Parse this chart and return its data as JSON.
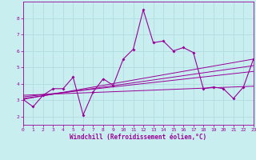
{
  "xlabel": "Windchill (Refroidissement éolien,°C)",
  "bg_color": "#c8eef0",
  "grid_color": "#b0dde0",
  "line_color": "#990099",
  "xlim": [
    0,
    23
  ],
  "ylim": [
    1.5,
    9.0
  ],
  "xticks": [
    0,
    1,
    2,
    3,
    4,
    5,
    6,
    7,
    8,
    9,
    10,
    11,
    12,
    13,
    14,
    15,
    16,
    17,
    18,
    19,
    20,
    21,
    22,
    23
  ],
  "yticks": [
    2,
    3,
    4,
    5,
    6,
    7,
    8
  ],
  "main_x": [
    0,
    1,
    2,
    3,
    4,
    5,
    6,
    7,
    8,
    9,
    10,
    11,
    12,
    13,
    14,
    15,
    16,
    17,
    18,
    19,
    20,
    21,
    22,
    23
  ],
  "main_y": [
    3.05,
    2.6,
    3.3,
    3.7,
    3.7,
    4.4,
    2.1,
    3.5,
    4.3,
    3.9,
    5.5,
    6.1,
    8.5,
    6.5,
    6.6,
    6.0,
    6.2,
    5.9,
    3.7,
    3.8,
    3.7,
    3.1,
    3.8,
    5.5
  ],
  "trend1_x": [
    0,
    23
  ],
  "trend1_y": [
    3.05,
    5.5
  ],
  "trend2_x": [
    0,
    23
  ],
  "trend2_y": [
    3.1,
    5.1
  ],
  "trend3_x": [
    0,
    23
  ],
  "trend3_y": [
    3.2,
    4.75
  ],
  "trend4_x": [
    0,
    23
  ],
  "trend4_y": [
    3.3,
    3.85
  ],
  "tick_fontsize": 4.5,
  "xlabel_fontsize": 5.5
}
